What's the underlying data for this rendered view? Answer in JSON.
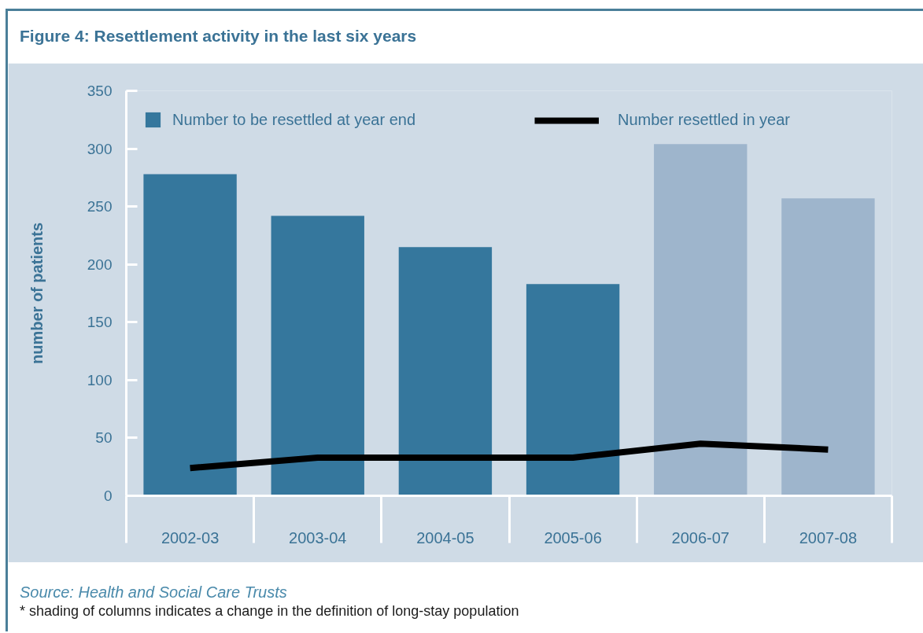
{
  "chart_data": {
    "type": "bar",
    "title": "Figure 4: Resettlement activity in the last six years",
    "ylabel": "number of patients",
    "categories": [
      "2002-03",
      "2003-04",
      "2004-05",
      "2005-06",
      "2006-07",
      "2007-08"
    ],
    "series": [
      {
        "name": "Number to be resettled at year end",
        "colors": [
          "#35779d",
          "#35779d",
          "#35779d",
          "#35779d",
          "#9eb5cc",
          "#9eb5cc"
        ],
        "values": [
          278,
          242,
          215,
          183,
          304,
          257
        ]
      },
      {
        "name": "Number resettled in year",
        "type": "line",
        "color": "#000000",
        "values": [
          24,
          33,
          33,
          33,
          45,
          40
        ]
      }
    ],
    "ylim": [
      0,
      350
    ],
    "yticks": [
      0,
      50,
      100,
      150,
      200,
      250,
      300,
      350
    ],
    "grid": false,
    "legend": "top",
    "annotations": [
      "Source: Health and Social Care Trusts",
      "* shading of columns indicates a change in the definition of long-stay population"
    ]
  }
}
